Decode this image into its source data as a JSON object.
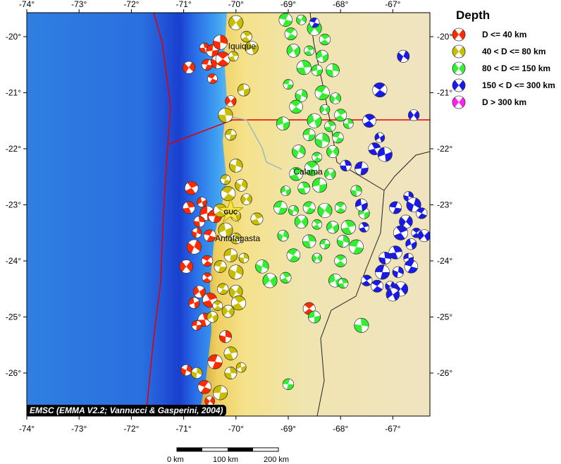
{
  "map": {
    "lon_range": [
      -74,
      -66.3
    ],
    "lat_range": [
      -19.6,
      -26.8
    ],
    "lon_ticks": [
      {
        "v": -74,
        "label": "-74°"
      },
      {
        "v": -73,
        "label": "-73°"
      },
      {
        "v": -72,
        "label": "-72°"
      },
      {
        "v": -71,
        "label": "-71°"
      },
      {
        "v": -70,
        "label": "-70°"
      },
      {
        "v": -69,
        "label": "-69°"
      },
      {
        "v": -68,
        "label": "-68°"
      },
      {
        "v": -67,
        "label": "-67°"
      }
    ],
    "lat_ticks": [
      {
        "v": -20,
        "label": "-20°"
      },
      {
        "v": -21,
        "label": "-21°"
      },
      {
        "v": -22,
        "label": "-22°"
      },
      {
        "v": -23,
        "label": "-23°"
      },
      {
        "v": -24,
        "label": "-24°"
      },
      {
        "v": -25,
        "label": "-25°"
      },
      {
        "v": -26,
        "label": "-26°"
      }
    ],
    "places": [
      {
        "name": "Iquique",
        "lon": -70.15,
        "lat": -20.22
      },
      {
        "name": "Calama",
        "lon": -68.9,
        "lat": -22.46
      },
      {
        "name": "Antofagasta",
        "lon": -70.4,
        "lat": -23.65
      }
    ],
    "station": {
      "name": "GUC",
      "lon": -70.1,
      "lat": -23.12,
      "color": "#f5e642"
    },
    "credit": "EMSC (EMMA V2.2; Vannucci & Gasperini, 2004)"
  },
  "legend": {
    "title": "Depth",
    "classes": [
      {
        "label": "D <= 40 km",
        "color": "#ff2a00"
      },
      {
        "label": "40 < D <= 80 km",
        "color": "#c8bd00"
      },
      {
        "label": "80 < D <= 150 km",
        "color": "#33ee33"
      },
      {
        "label": "150 < D <= 300 km",
        "color": "#1a1ae6"
      },
      {
        "label": "D > 300 km",
        "color": "#ff22ee"
      }
    ]
  },
  "scale_bar": {
    "labels": [
      "0 km",
      "100 km",
      "200 km"
    ]
  },
  "events": [
    [
      -70.6,
      -20.2,
      0
    ],
    [
      -70.45,
      -20.25,
      0
    ],
    [
      -70.3,
      -20.1,
      0
    ],
    [
      -70.55,
      -20.5,
      0
    ],
    [
      -70.35,
      -20.45,
      0
    ],
    [
      -70.45,
      -20.75,
      0
    ],
    [
      -70.9,
      -20.55,
      0
    ],
    [
      -70.25,
      -20.4,
      0
    ],
    [
      -70.1,
      -21.15,
      0
    ],
    [
      -70.85,
      -22.7,
      0
    ],
    [
      -70.65,
      -22.95,
      0
    ],
    [
      -70.9,
      -23.05,
      0
    ],
    [
      -70.55,
      -23.15,
      0
    ],
    [
      -70.7,
      -23.3,
      0
    ],
    [
      -70.4,
      -23.2,
      0
    ],
    [
      -70.75,
      -23.5,
      0
    ],
    [
      -70.5,
      -23.55,
      0
    ],
    [
      -70.8,
      -23.75,
      0
    ],
    [
      -70.55,
      -24.0,
      0
    ],
    [
      -70.95,
      -24.1,
      0
    ],
    [
      -70.55,
      -24.3,
      0
    ],
    [
      -70.7,
      -24.55,
      0
    ],
    [
      -70.5,
      -24.7,
      0
    ],
    [
      -70.8,
      -24.75,
      0
    ],
    [
      -70.6,
      -25.05,
      0
    ],
    [
      -70.75,
      -25.15,
      0
    ],
    [
      -70.2,
      -25.35,
      0
    ],
    [
      -70.4,
      -25.8,
      0
    ],
    [
      -70.95,
      -25.95,
      0
    ],
    [
      -70.6,
      -26.25,
      0
    ],
    [
      -70.5,
      -26.5,
      0
    ],
    [
      -68.6,
      -24.85,
      0
    ],
    [
      -70.0,
      -19.75,
      1
    ],
    [
      -69.8,
      -20.0,
      1
    ],
    [
      -69.7,
      -20.2,
      1
    ],
    [
      -70.05,
      -20.35,
      1
    ],
    [
      -69.85,
      -20.95,
      1
    ],
    [
      -70.2,
      -21.4,
      1
    ],
    [
      -70.1,
      -21.75,
      1
    ],
    [
      -70.0,
      -22.3,
      1
    ],
    [
      -70.2,
      -22.55,
      1
    ],
    [
      -69.9,
      -22.65,
      1
    ],
    [
      -70.15,
      -22.8,
      1
    ],
    [
      -69.8,
      -22.9,
      1
    ],
    [
      -70.3,
      -23.1,
      1
    ],
    [
      -70.0,
      -23.2,
      1
    ],
    [
      -69.6,
      -23.25,
      1
    ],
    [
      -70.2,
      -23.45,
      1
    ],
    [
      -70.0,
      -23.6,
      1
    ],
    [
      -70.1,
      -23.9,
      1
    ],
    [
      -69.85,
      -23.95,
      1
    ],
    [
      -70.3,
      -24.1,
      1
    ],
    [
      -70.0,
      -24.2,
      1
    ],
    [
      -70.25,
      -24.5,
      1
    ],
    [
      -70.0,
      -24.55,
      1
    ],
    [
      -70.35,
      -24.8,
      1
    ],
    [
      -70.15,
      -24.9,
      1
    ],
    [
      -69.95,
      -24.75,
      1
    ],
    [
      -70.45,
      -25.0,
      1
    ],
    [
      -70.1,
      -25.65,
      1
    ],
    [
      -69.9,
      -25.9,
      1
    ],
    [
      -70.1,
      -26.0,
      1
    ],
    [
      -70.3,
      -26.35,
      1
    ],
    [
      -70.75,
      -26.0,
      1
    ],
    [
      -69.05,
      -19.7,
      2
    ],
    [
      -68.75,
      -19.7,
      2
    ],
    [
      -68.95,
      -19.95,
      2
    ],
    [
      -68.5,
      -19.85,
      2
    ],
    [
      -68.3,
      -20.05,
      2
    ],
    [
      -68.9,
      -20.25,
      2
    ],
    [
      -68.6,
      -20.25,
      2
    ],
    [
      -68.35,
      -20.35,
      2
    ],
    [
      -68.7,
      -20.55,
      2
    ],
    [
      -68.45,
      -20.6,
      2
    ],
    [
      -68.15,
      -20.6,
      2
    ],
    [
      -69.0,
      -20.85,
      2
    ],
    [
      -68.75,
      -21.05,
      2
    ],
    [
      -68.35,
      -21.0,
      2
    ],
    [
      -68.1,
      -21.1,
      2
    ],
    [
      -68.85,
      -21.25,
      2
    ],
    [
      -68.3,
      -21.3,
      2
    ],
    [
      -68.0,
      -21.4,
      2
    ],
    [
      -68.5,
      -21.5,
      2
    ],
    [
      -68.2,
      -21.6,
      2
    ],
    [
      -69.1,
      -21.55,
      2
    ],
    [
      -67.85,
      -21.55,
      2
    ],
    [
      -68.6,
      -21.75,
      2
    ],
    [
      -68.35,
      -21.85,
      2
    ],
    [
      -68.05,
      -21.8,
      2
    ],
    [
      -68.8,
      -22.05,
      2
    ],
    [
      -68.45,
      -22.15,
      2
    ],
    [
      -68.15,
      -22.05,
      2
    ],
    [
      -68.55,
      -22.35,
      2
    ],
    [
      -68.2,
      -22.45,
      2
    ],
    [
      -68.85,
      -22.45,
      2
    ],
    [
      -69.05,
      -22.75,
      2
    ],
    [
      -68.7,
      -22.7,
      2
    ],
    [
      -68.4,
      -22.65,
      2
    ],
    [
      -67.7,
      -22.75,
      2
    ],
    [
      -69.15,
      -23.05,
      2
    ],
    [
      -68.9,
      -23.1,
      2
    ],
    [
      -68.6,
      -23.05,
      2
    ],
    [
      -68.3,
      -23.1,
      2
    ],
    [
      -68.0,
      -23.05,
      2
    ],
    [
      -68.75,
      -23.3,
      2
    ],
    [
      -68.45,
      -23.35,
      2
    ],
    [
      -68.15,
      -23.4,
      2
    ],
    [
      -67.85,
      -23.4,
      2
    ],
    [
      -67.55,
      -23.15,
      2
    ],
    [
      -68.6,
      -23.65,
      2
    ],
    [
      -68.3,
      -23.7,
      2
    ],
    [
      -67.95,
      -23.65,
      2
    ],
    [
      -67.7,
      -23.75,
      2
    ],
    [
      -69.1,
      -23.55,
      2
    ],
    [
      -68.9,
      -23.9,
      2
    ],
    [
      -68.45,
      -23.95,
      2
    ],
    [
      -68.0,
      -24.0,
      2
    ],
    [
      -69.35,
      -24.35,
      2
    ],
    [
      -69.05,
      -24.3,
      2
    ],
    [
      -68.1,
      -24.35,
      2
    ],
    [
      -67.95,
      -24.4,
      2
    ],
    [
      -68.5,
      -25.0,
      2
    ],
    [
      -67.6,
      -25.15,
      2
    ],
    [
      -69.0,
      -26.2,
      2
    ],
    [
      -69.5,
      -24.1,
      2
    ],
    [
      -68.5,
      -19.75,
      3
    ],
    [
      -66.8,
      -20.35,
      3
    ],
    [
      -67.25,
      -20.95,
      3
    ],
    [
      -66.6,
      -21.4,
      3
    ],
    [
      -67.45,
      -21.5,
      3
    ],
    [
      -67.25,
      -21.8,
      3
    ],
    [
      -67.35,
      -22.0,
      3
    ],
    [
      -67.15,
      -22.1,
      3
    ],
    [
      -67.9,
      -22.3,
      3
    ],
    [
      -67.6,
      -22.35,
      3
    ],
    [
      -66.7,
      -22.85,
      3
    ],
    [
      -66.95,
      -23.05,
      3
    ],
    [
      -66.6,
      -23.0,
      3
    ],
    [
      -66.45,
      -23.15,
      3
    ],
    [
      -66.75,
      -23.3,
      3
    ],
    [
      -66.55,
      -23.5,
      3
    ],
    [
      -66.4,
      -23.55,
      3
    ],
    [
      -66.85,
      -23.5,
      3
    ],
    [
      -66.65,
      -23.7,
      3
    ],
    [
      -66.95,
      -23.85,
      3
    ],
    [
      -66.7,
      -23.95,
      3
    ],
    [
      -67.15,
      -23.95,
      3
    ],
    [
      -67.2,
      -24.2,
      3
    ],
    [
      -66.9,
      -24.2,
      3
    ],
    [
      -66.65,
      -24.1,
      3
    ],
    [
      -67.05,
      -24.45,
      3
    ],
    [
      -67.3,
      -24.45,
      3
    ],
    [
      -66.85,
      -24.5,
      3
    ],
    [
      -67.5,
      -24.35,
      3
    ],
    [
      -67.0,
      -24.6,
      3
    ],
    [
      -67.55,
      -23.4,
      3
    ],
    [
      -67.6,
      -23.0,
      3
    ]
  ]
}
